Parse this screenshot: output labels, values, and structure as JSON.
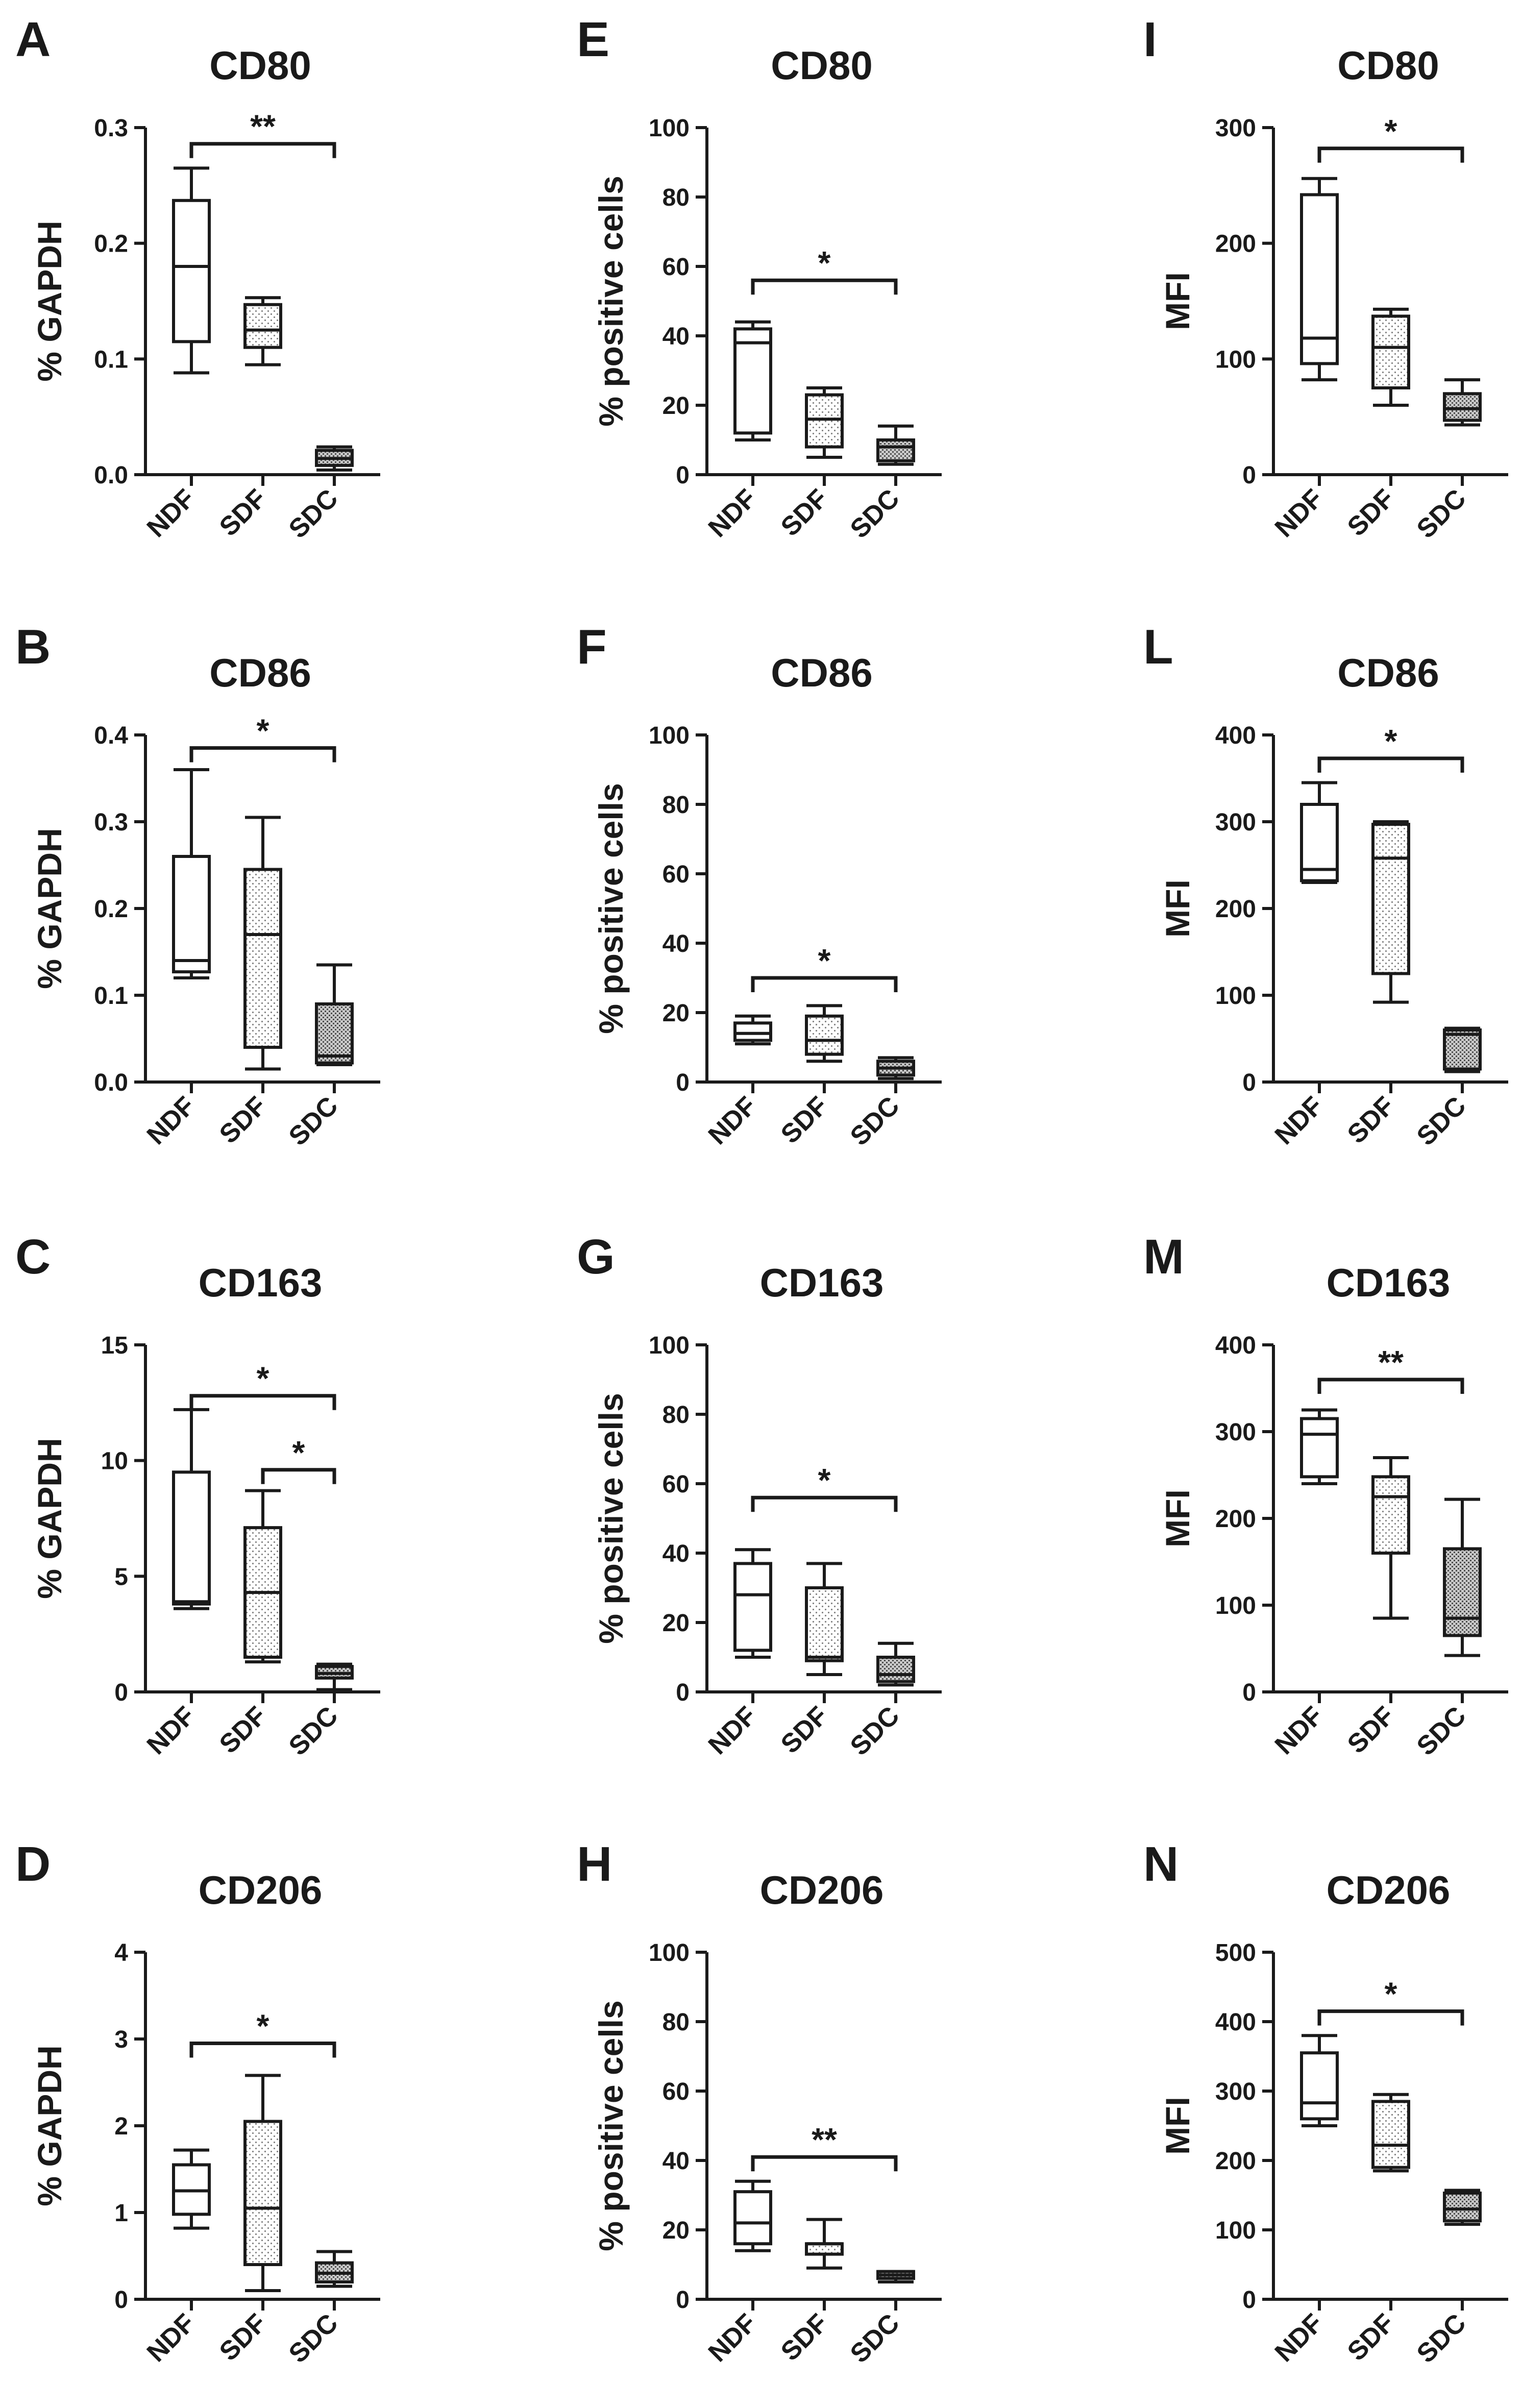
{
  "categories": [
    "NDF",
    "SDF",
    "SDC"
  ],
  "chart_data": [
    {
      "id": "A",
      "type": "box",
      "title": "CD80",
      "ylabel": "% GAPDH",
      "ylim": [
        0,
        0.3
      ],
      "ticks": [
        "0.0",
        "0.1",
        "0.2",
        "0.3"
      ],
      "boxes": [
        {
          "min": 0.088,
          "q1": 0.115,
          "median": 0.18,
          "q3": 0.237,
          "max": 0.265
        },
        {
          "min": 0.095,
          "q1": 0.11,
          "median": 0.125,
          "q3": 0.147,
          "max": 0.153
        },
        {
          "min": 0.004,
          "q1": 0.008,
          "median": 0.014,
          "q3": 0.021,
          "max": 0.024
        }
      ],
      "sig": [
        {
          "from": 0,
          "to": 2,
          "y": 0.286,
          "label": "**"
        }
      ]
    },
    {
      "id": "E",
      "type": "box",
      "title": "CD80",
      "ylabel": "% positive cells",
      "ylim": [
        0,
        100
      ],
      "ticks": [
        "0",
        "20",
        "40",
        "60",
        "80",
        "100"
      ],
      "boxes": [
        {
          "min": 10,
          "q1": 12,
          "median": 38,
          "q3": 42,
          "max": 44
        },
        {
          "min": 5,
          "q1": 8,
          "median": 16,
          "q3": 23,
          "max": 25
        },
        {
          "min": 3,
          "q1": 4,
          "median": 8,
          "q3": 10,
          "max": 14
        }
      ],
      "sig": [
        {
          "from": 0,
          "to": 2,
          "y": 56,
          "label": "*"
        }
      ]
    },
    {
      "id": "I",
      "type": "box",
      "title": "CD80",
      "ylabel": "MFI",
      "ylim": [
        0,
        300
      ],
      "ticks": [
        "0",
        "100",
        "200",
        "300"
      ],
      "boxes": [
        {
          "min": 82,
          "q1": 96,
          "median": 118,
          "q3": 242,
          "max": 256
        },
        {
          "min": 60,
          "q1": 75,
          "median": 110,
          "q3": 137,
          "max": 143
        },
        {
          "min": 43,
          "q1": 47,
          "median": 57,
          "q3": 70,
          "max": 82
        }
      ],
      "sig": [
        {
          "from": 0,
          "to": 2,
          "y": 282,
          "label": "*"
        }
      ]
    },
    {
      "id": "B",
      "type": "box",
      "title": "CD86",
      "ylabel": "% GAPDH",
      "ylim": [
        0,
        0.4
      ],
      "ticks": [
        "0.0",
        "0.1",
        "0.2",
        "0.3",
        "0.4"
      ],
      "boxes": [
        {
          "min": 0.12,
          "q1": 0.127,
          "median": 0.14,
          "q3": 0.26,
          "max": 0.36
        },
        {
          "min": 0.015,
          "q1": 0.04,
          "median": 0.17,
          "q3": 0.245,
          "max": 0.305
        },
        {
          "min": 0.02,
          "q1": 0.022,
          "median": 0.03,
          "q3": 0.09,
          "max": 0.135
        }
      ],
      "sig": [
        {
          "from": 0,
          "to": 2,
          "y": 0.385,
          "label": "*"
        }
      ]
    },
    {
      "id": "F",
      "type": "box",
      "title": "CD86",
      "ylabel": "% positive cells",
      "ylim": [
        0,
        100
      ],
      "ticks": [
        "0",
        "20",
        "40",
        "60",
        "80",
        "100"
      ],
      "boxes": [
        {
          "min": 11,
          "q1": 12,
          "median": 14,
          "q3": 17,
          "max": 19
        },
        {
          "min": 6,
          "q1": 8,
          "median": 12,
          "q3": 19,
          "max": 22
        },
        {
          "min": 1,
          "q1": 2,
          "median": 4,
          "q3": 6,
          "max": 7
        }
      ],
      "sig": [
        {
          "from": 0,
          "to": 2,
          "y": 30,
          "label": "*"
        }
      ]
    },
    {
      "id": "L",
      "type": "box",
      "title": "CD86",
      "ylabel": "MFI",
      "ylim": [
        0,
        400
      ],
      "ticks": [
        "0",
        "100",
        "200",
        "300",
        "400"
      ],
      "boxes": [
        {
          "min": 230,
          "q1": 232,
          "median": 245,
          "q3": 320,
          "max": 345
        },
        {
          "min": 92,
          "q1": 125,
          "median": 258,
          "q3": 297,
          "max": 300
        },
        {
          "min": 12,
          "q1": 15,
          "median": 55,
          "q3": 60,
          "max": 62
        }
      ],
      "sig": [
        {
          "from": 0,
          "to": 2,
          "y": 373,
          "label": "*"
        }
      ]
    },
    {
      "id": "C",
      "type": "box",
      "title": "CD163",
      "ylabel": "% GAPDH",
      "ylim": [
        0,
        15
      ],
      "ticks": [
        "0",
        "5",
        "10",
        "15"
      ],
      "boxes": [
        {
          "min": 3.6,
          "q1": 3.8,
          "median": 3.9,
          "q3": 9.5,
          "max": 12.2
        },
        {
          "min": 1.3,
          "q1": 1.5,
          "median": 4.3,
          "q3": 7.1,
          "max": 8.7
        },
        {
          "min": 0.1,
          "q1": 0.6,
          "median": 0.8,
          "q3": 1.1,
          "max": 1.2
        }
      ],
      "sig": [
        {
          "from": 0,
          "to": 2,
          "y": 12.8,
          "label": "*"
        },
        {
          "from": 1,
          "to": 2,
          "y": 9.6,
          "label": "*"
        }
      ]
    },
    {
      "id": "G",
      "type": "box",
      "title": "CD163",
      "ylabel": "% positive cells",
      "ylim": [
        0,
        100
      ],
      "ticks": [
        "0",
        "20",
        "40",
        "60",
        "80",
        "100"
      ],
      "boxes": [
        {
          "min": 10,
          "q1": 12,
          "median": 28,
          "q3": 37,
          "max": 41
        },
        {
          "min": 5,
          "q1": 9,
          "median": 10,
          "q3": 30,
          "max": 37
        },
        {
          "min": 2,
          "q1": 3,
          "median": 5,
          "q3": 10,
          "max": 14
        }
      ],
      "sig": [
        {
          "from": 0,
          "to": 2,
          "y": 56,
          "label": "*"
        }
      ]
    },
    {
      "id": "M",
      "type": "box",
      "title": "CD163",
      "ylabel": "MFI",
      "ylim": [
        0,
        400
      ],
      "ticks": [
        "0",
        "100",
        "200",
        "300",
        "400"
      ],
      "boxes": [
        {
          "min": 240,
          "q1": 248,
          "median": 297,
          "q3": 315,
          "max": 325
        },
        {
          "min": 85,
          "q1": 160,
          "median": 225,
          "q3": 248,
          "max": 270
        },
        {
          "min": 42,
          "q1": 65,
          "median": 85,
          "q3": 165,
          "max": 222
        }
      ],
      "sig": [
        {
          "from": 0,
          "to": 2,
          "y": 360,
          "label": "**"
        }
      ]
    },
    {
      "id": "D",
      "type": "box",
      "title": "CD206",
      "ylabel": "% GAPDH",
      "ylim": [
        0,
        4
      ],
      "ticks": [
        "0",
        "1",
        "2",
        "3",
        "4"
      ],
      "boxes": [
        {
          "min": 0.82,
          "q1": 0.98,
          "median": 1.25,
          "q3": 1.55,
          "max": 1.72
        },
        {
          "min": 0.1,
          "q1": 0.4,
          "median": 1.05,
          "q3": 2.05,
          "max": 2.58
        },
        {
          "min": 0.15,
          "q1": 0.2,
          "median": 0.3,
          "q3": 0.42,
          "max": 0.55
        }
      ],
      "sig": [
        {
          "from": 0,
          "to": 2,
          "y": 2.95,
          "label": "*"
        }
      ]
    },
    {
      "id": "H",
      "type": "box",
      "title": "CD206",
      "ylabel": "% positive cells",
      "ylim": [
        0,
        100
      ],
      "ticks": [
        "0",
        "20",
        "40",
        "60",
        "80",
        "100"
      ],
      "boxes": [
        {
          "min": 14,
          "q1": 16,
          "median": 22,
          "q3": 31,
          "max": 34
        },
        {
          "min": 9,
          "q1": 13,
          "median": 16,
          "q3": 16,
          "max": 23
        },
        {
          "min": 5,
          "q1": 6,
          "median": 7,
          "q3": 8,
          "max": 8
        }
      ],
      "sig": [
        {
          "from": 0,
          "to": 2,
          "y": 41,
          "label": "**"
        }
      ]
    },
    {
      "id": "N",
      "type": "box",
      "title": "CD206",
      "ylabel": "MFI",
      "ylim": [
        0,
        500
      ],
      "ticks": [
        "0",
        "100",
        "200",
        "300",
        "400",
        "500"
      ],
      "boxes": [
        {
          "min": 250,
          "q1": 260,
          "median": 283,
          "q3": 355,
          "max": 380
        },
        {
          "min": 185,
          "q1": 190,
          "median": 222,
          "q3": 285,
          "max": 295
        },
        {
          "min": 108,
          "q1": 113,
          "median": 130,
          "q3": 153,
          "max": 157
        }
      ],
      "sig": [
        {
          "from": 0,
          "to": 2,
          "y": 415,
          "label": "*"
        }
      ]
    }
  ]
}
